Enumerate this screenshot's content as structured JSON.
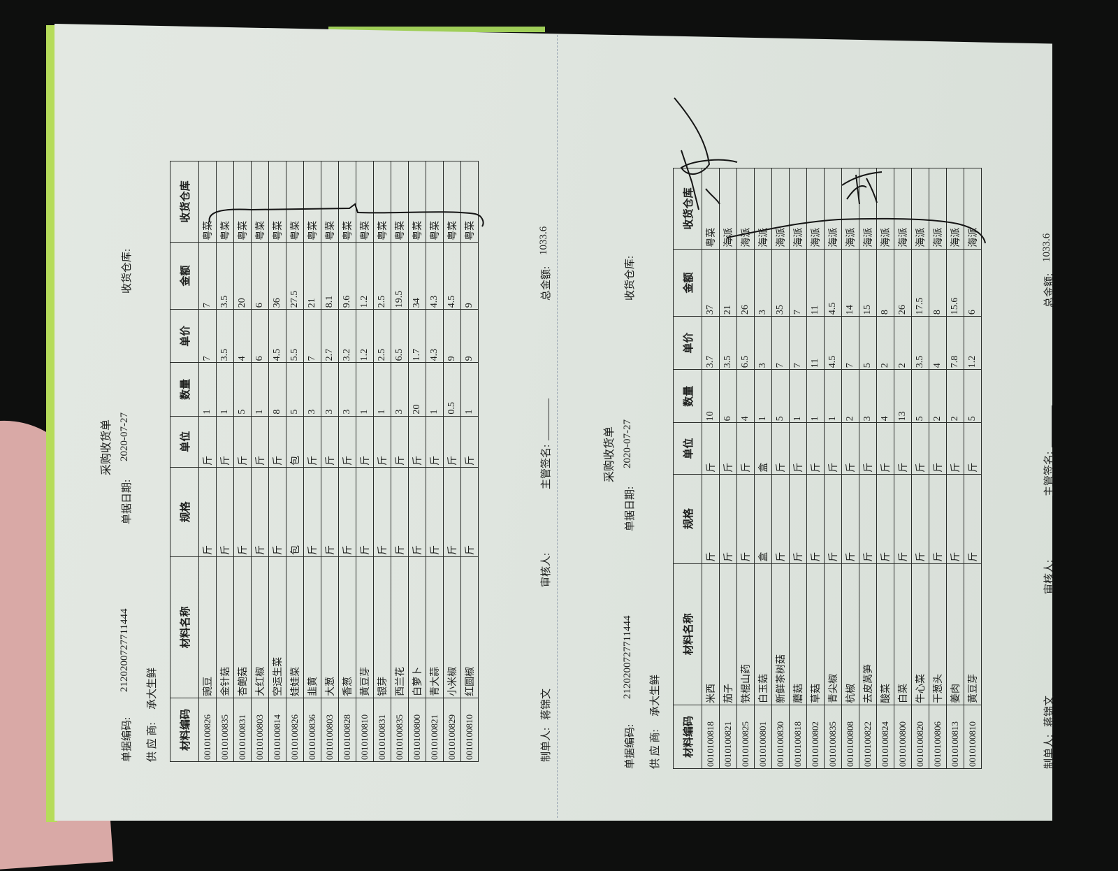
{
  "labels": {
    "title": "采购收货单",
    "doc_no": "单据编码:",
    "doc_date": "单据日期:",
    "warehouse": "收货仓库:",
    "supplier": "供 应 商:",
    "maker": "制单人:",
    "reviewer": "审核人:",
    "manager_sign": "主管签名:",
    "total": "总金额:"
  },
  "columns": [
    "材料编码",
    "材料名称",
    "规格",
    "单位",
    "数量",
    "单价",
    "金额",
    "收货仓库"
  ],
  "forms": [
    {
      "doc_no": "2120200727711444",
      "doc_date": "2020-07-27",
      "supplier": "承大生鲜",
      "maker": "蒋锦文",
      "total": "1033.6",
      "rows": [
        {
          "code": "0010100826",
          "name": "豌豆",
          "spec": "斤",
          "unit": "斤",
          "qty": "1",
          "price": "7",
          "amount": "7",
          "wh": "粤菜"
        },
        {
          "code": "0010100835",
          "name": "金针菇",
          "spec": "斤",
          "unit": "斤",
          "qty": "1",
          "price": "3.5",
          "amount": "3.5",
          "wh": "粤菜"
        },
        {
          "code": "0010100831",
          "name": "杏鲍菇",
          "spec": "斤",
          "unit": "斤",
          "qty": "5",
          "price": "4",
          "amount": "20",
          "wh": "粤菜"
        },
        {
          "code": "0010100803",
          "name": "大红椒",
          "spec": "斤",
          "unit": "斤",
          "qty": "1",
          "price": "6",
          "amount": "6",
          "wh": "粤菜"
        },
        {
          "code": "0010100814",
          "name": "空运生菜",
          "spec": "斤",
          "unit": "斤",
          "qty": "8",
          "price": "4.5",
          "amount": "36",
          "wh": "粤菜"
        },
        {
          "code": "0010100826",
          "name": "娃娃菜",
          "spec": "包",
          "unit": "包",
          "qty": "5",
          "price": "5.5",
          "amount": "27.5",
          "wh": "粤菜"
        },
        {
          "code": "0010100836",
          "name": "韭黄",
          "spec": "斤",
          "unit": "斤",
          "qty": "3",
          "price": "7",
          "amount": "21",
          "wh": "粤菜"
        },
        {
          "code": "0010100803",
          "name": "大葱",
          "spec": "斤",
          "unit": "斤",
          "qty": "3",
          "price": "2.7",
          "amount": "8.1",
          "wh": "粤菜"
        },
        {
          "code": "0010100828",
          "name": "香葱",
          "spec": "斤",
          "unit": "斤",
          "qty": "3",
          "price": "3.2",
          "amount": "9.6",
          "wh": "粤菜"
        },
        {
          "code": "0010100810",
          "name": "黄豆芽",
          "spec": "斤",
          "unit": "斤",
          "qty": "1",
          "price": "1.2",
          "amount": "1.2",
          "wh": "粤菜"
        },
        {
          "code": "0010100831",
          "name": "银芽",
          "spec": "斤",
          "unit": "斤",
          "qty": "1",
          "price": "2.5",
          "amount": "2.5",
          "wh": "粤菜"
        },
        {
          "code": "0010100835",
          "name": "西兰花",
          "spec": "斤",
          "unit": "斤",
          "qty": "3",
          "price": "6.5",
          "amount": "19.5",
          "wh": "粤菜"
        },
        {
          "code": "0010100800",
          "name": "白萝卜",
          "spec": "斤",
          "unit": "斤",
          "qty": "20",
          "price": "1.7",
          "amount": "34",
          "wh": "粤菜"
        },
        {
          "code": "0010100821",
          "name": "青大蒜",
          "spec": "斤",
          "unit": "斤",
          "qty": "1",
          "price": "4.3",
          "amount": "4.3",
          "wh": "粤菜"
        },
        {
          "code": "0010100829",
          "name": "小米椒",
          "spec": "斤",
          "unit": "斤",
          "qty": "0.5",
          "price": "9",
          "amount": "4.5",
          "wh": "粤菜"
        },
        {
          "code": "0010100810",
          "name": "红圆椒",
          "spec": "斤",
          "unit": "斤",
          "qty": "1",
          "price": "9",
          "amount": "9",
          "wh": "粤菜"
        }
      ]
    },
    {
      "doc_no": "2120200727711444",
      "doc_date": "2020-07-27",
      "supplier": "承大生鲜",
      "maker": "蒋锦文",
      "total": "1033.6",
      "rows": [
        {
          "code": "0010100818",
          "name": "米西",
          "spec": "斤",
          "unit": "斤",
          "qty": "10",
          "price": "3.7",
          "amount": "37",
          "wh": "粤菜"
        },
        {
          "code": "0010100821",
          "name": "茄子",
          "spec": "斤",
          "unit": "斤",
          "qty": "6",
          "price": "3.5",
          "amount": "21",
          "wh": "海派"
        },
        {
          "code": "0010100825",
          "name": "铁棍山药",
          "spec": "斤",
          "unit": "斤",
          "qty": "4",
          "price": "6.5",
          "amount": "26",
          "wh": "海派"
        },
        {
          "code": "0010100801",
          "name": "白玉菇",
          "spec": "盒",
          "unit": "盒",
          "qty": "1",
          "price": "3",
          "amount": "3",
          "wh": "海派"
        },
        {
          "code": "0010100830",
          "name": "新鲜茶树菇",
          "spec": "斤",
          "unit": "斤",
          "qty": "5",
          "price": "7",
          "amount": "35",
          "wh": "海派"
        },
        {
          "code": "0010100818",
          "name": "蘑菇",
          "spec": "斤",
          "unit": "斤",
          "qty": "1",
          "price": "7",
          "amount": "7",
          "wh": "海派"
        },
        {
          "code": "0010100802",
          "name": "草菇",
          "spec": "斤",
          "unit": "斤",
          "qty": "1",
          "price": "11",
          "amount": "11",
          "wh": "海派"
        },
        {
          "code": "0010100835",
          "name": "青尖椒",
          "spec": "斤",
          "unit": "斤",
          "qty": "1",
          "price": "4.5",
          "amount": "4.5",
          "wh": "海派"
        },
        {
          "code": "0010100808",
          "name": "杭椒",
          "spec": "斤",
          "unit": "斤",
          "qty": "2",
          "price": "7",
          "amount": "14",
          "wh": "海派"
        },
        {
          "code": "0010100822",
          "name": "去皮莴笋",
          "spec": "斤",
          "unit": "斤",
          "qty": "3",
          "price": "5",
          "amount": "15",
          "wh": "海派"
        },
        {
          "code": "0010100824",
          "name": "酸菜",
          "spec": "斤",
          "unit": "斤",
          "qty": "4",
          "price": "2",
          "amount": "8",
          "wh": "海派"
        },
        {
          "code": "0010100800",
          "name": "白菜",
          "spec": "斤",
          "unit": "斤",
          "qty": "13",
          "price": "2",
          "amount": "26",
          "wh": "海派"
        },
        {
          "code": "0010100820",
          "name": "牛心菜",
          "spec": "斤",
          "unit": "斤",
          "qty": "5",
          "price": "3.5",
          "amount": "17.5",
          "wh": "海派"
        },
        {
          "code": "0010100806",
          "name": "干葱头",
          "spec": "斤",
          "unit": "斤",
          "qty": "2",
          "price": "4",
          "amount": "8",
          "wh": "海派"
        },
        {
          "code": "0010100813",
          "name": "姜肉",
          "spec": "斤",
          "unit": "斤",
          "qty": "2",
          "price": "7.8",
          "amount": "15.6",
          "wh": "海派"
        },
        {
          "code": "0010100810",
          "name": "黄豆芽",
          "spec": "斤",
          "unit": "斤",
          "qty": "5",
          "price": "1.2",
          "amount": "6",
          "wh": "海派"
        }
      ]
    }
  ],
  "colors": {
    "paper": "#dfe5df",
    "background": "#0e0f0e",
    "ink": "#1d1f1d",
    "pink_sheet": "#d9a9a6",
    "green_edge": "#b6dc5a"
  },
  "handwriting": [
    "brace-left-table",
    "brace-right-table",
    "signature-top",
    "signature-mid"
  ]
}
